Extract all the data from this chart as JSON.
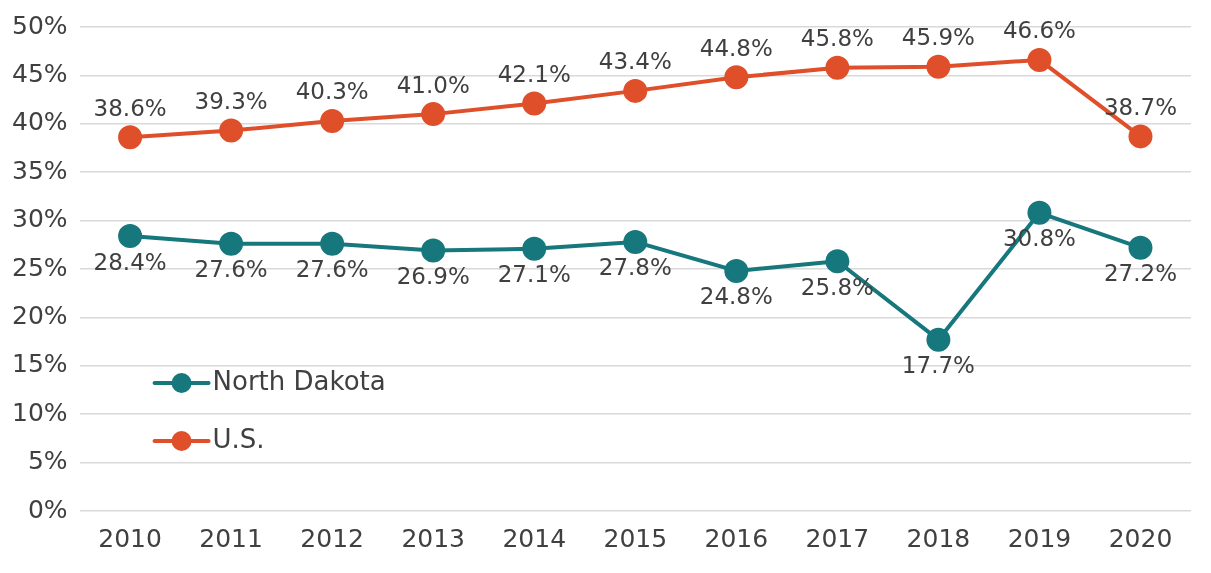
{
  "chart_data": {
    "type": "line",
    "categories": [
      "2010",
      "2011",
      "2012",
      "2013",
      "2014",
      "2015",
      "2016",
      "2017",
      "2018",
      "2019",
      "2020"
    ],
    "series": [
      {
        "name": "North Dakota",
        "color": "#16777d",
        "values": [
          28.4,
          27.6,
          27.6,
          26.9,
          27.1,
          27.8,
          24.8,
          25.8,
          17.7,
          30.8,
          27.2
        ],
        "value_labels": [
          "28.4%",
          "27.6%",
          "27.6%",
          "26.9%",
          "27.1%",
          "27.8%",
          "24.8%",
          "25.8%",
          "17.7%",
          "30.8%",
          "27.2%"
        ]
      },
      {
        "name": "U.S.",
        "color": "#de4f2a",
        "values": [
          38.6,
          39.3,
          40.3,
          41.0,
          42.1,
          43.4,
          44.8,
          45.8,
          45.9,
          46.6,
          38.7
        ],
        "value_labels": [
          "38.6%",
          "39.3%",
          "40.3%",
          "41.0%",
          "42.1%",
          "43.4%",
          "44.8%",
          "45.8%",
          "45.9%",
          "46.6%",
          "38.7%"
        ]
      }
    ],
    "ylim": [
      0,
      50
    ],
    "yticks": [
      {
        "value": 0,
        "label": "0%"
      },
      {
        "value": 5,
        "label": "5%"
      },
      {
        "value": 10,
        "label": "10%"
      },
      {
        "value": 15,
        "label": "15%"
      },
      {
        "value": 20,
        "label": "20%"
      },
      {
        "value": 25,
        "label": "25%"
      },
      {
        "value": 30,
        "label": "30%"
      },
      {
        "value": 35,
        "label": "35%"
      },
      {
        "value": 40,
        "label": "40%"
      },
      {
        "value": 45,
        "label": "45%"
      },
      {
        "value": 50,
        "label": "50%"
      }
    ],
    "grid": "y",
    "legend": "bottom left",
    "marker": "circle",
    "line_style": "solid"
  }
}
